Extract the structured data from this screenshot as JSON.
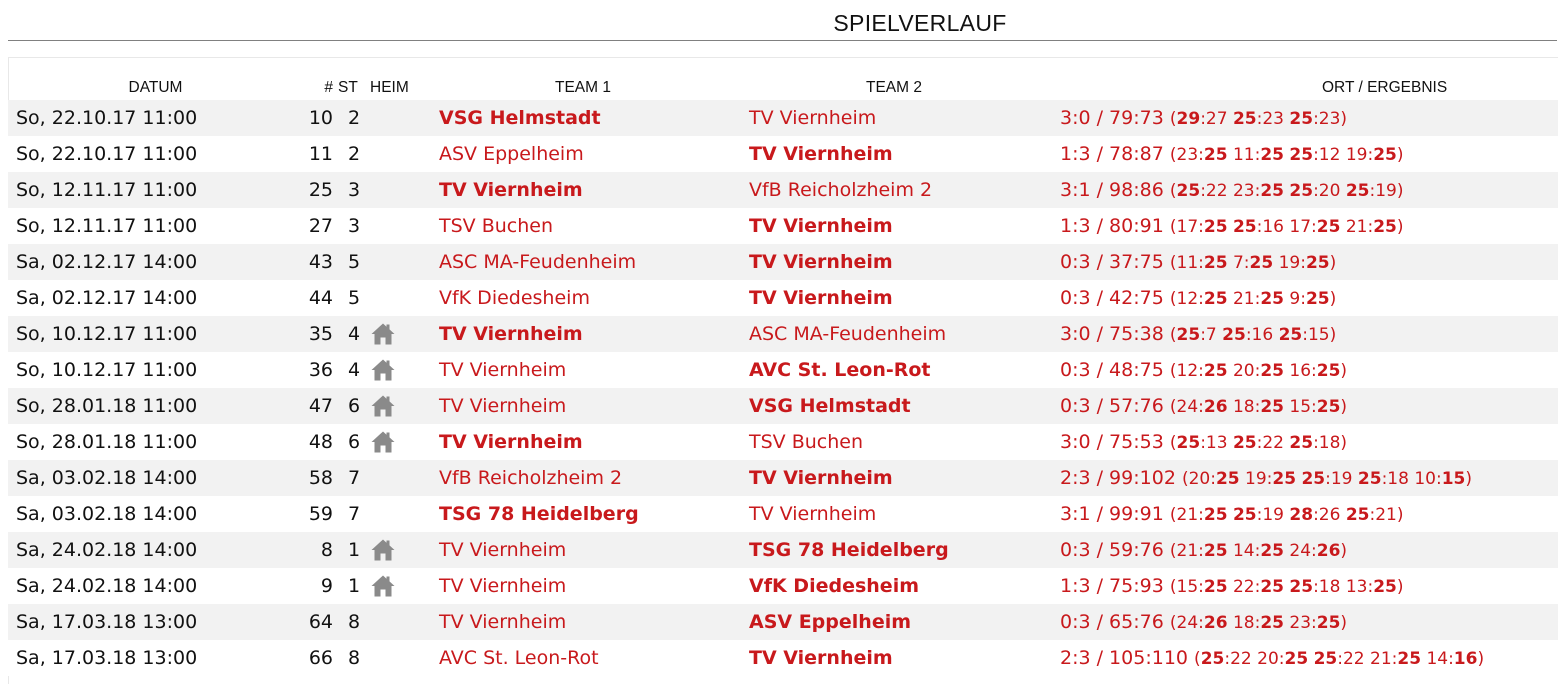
{
  "page": {
    "title": "SPIELVERLAUF"
  },
  "colors": {
    "team_red": "#c8191c",
    "row_stripe": "#f2f2f2",
    "rule": "#808080"
  },
  "headers": {
    "date": "DATUM",
    "nr": "#",
    "st": "ST",
    "heim": "HEIM",
    "team1": "TEAM 1",
    "team2": "TEAM 2",
    "result": "ORT / ERGEBNIS"
  },
  "home_icon": "house-icon",
  "matches": [
    {
      "date": "So, 22.10.17 11:00",
      "nr": "10",
      "st": "2",
      "home": false,
      "team1": "VSG Helmstadt",
      "team2": "TV Viernheim",
      "winner": 1,
      "result": "3:0 / 79:73",
      "sets": [
        [
          "29",
          "27"
        ],
        [
          "25",
          "23"
        ],
        [
          "25",
          "23"
        ]
      ]
    },
    {
      "date": "So, 22.10.17 11:00",
      "nr": "11",
      "st": "2",
      "home": false,
      "team1": "ASV Eppelheim",
      "team2": "TV Viernheim",
      "winner": 2,
      "result": "1:3 / 78:87",
      "sets": [
        [
          "23",
          "25"
        ],
        [
          "11",
          "25"
        ],
        [
          "25",
          "12"
        ],
        [
          "19",
          "25"
        ]
      ]
    },
    {
      "date": "So, 12.11.17 11:00",
      "nr": "25",
      "st": "3",
      "home": false,
      "team1": "TV Viernheim",
      "team2": "VfB Reicholzheim 2",
      "winner": 1,
      "result": "3:1 / 98:86",
      "sets": [
        [
          "25",
          "22"
        ],
        [
          "23",
          "25"
        ],
        [
          "25",
          "20"
        ],
        [
          "25",
          "19"
        ]
      ]
    },
    {
      "date": "So, 12.11.17 11:00",
      "nr": "27",
      "st": "3",
      "home": false,
      "team1": "TSV Buchen",
      "team2": "TV Viernheim",
      "winner": 2,
      "result": "1:3 / 80:91",
      "sets": [
        [
          "17",
          "25"
        ],
        [
          "25",
          "16"
        ],
        [
          "17",
          "25"
        ],
        [
          "21",
          "25"
        ]
      ]
    },
    {
      "date": "Sa, 02.12.17 14:00",
      "nr": "43",
      "st": "5",
      "home": false,
      "team1": "ASC MA-Feudenheim",
      "team2": "TV Viernheim",
      "winner": 2,
      "result": "0:3 / 37:75",
      "sets": [
        [
          "11",
          "25"
        ],
        [
          "7",
          "25"
        ],
        [
          "19",
          "25"
        ]
      ]
    },
    {
      "date": "Sa, 02.12.17 14:00",
      "nr": "44",
      "st": "5",
      "home": false,
      "team1": "VfK Diedesheim",
      "team2": "TV Viernheim",
      "winner": 2,
      "result": "0:3 / 42:75",
      "sets": [
        [
          "12",
          "25"
        ],
        [
          "21",
          "25"
        ],
        [
          "9",
          "25"
        ]
      ]
    },
    {
      "date": "So, 10.12.17 11:00",
      "nr": "35",
      "st": "4",
      "home": true,
      "team1": "TV Viernheim",
      "team2": "ASC MA-Feudenheim",
      "winner": 1,
      "result": "3:0 / 75:38",
      "sets": [
        [
          "25",
          "7"
        ],
        [
          "25",
          "16"
        ],
        [
          "25",
          "15"
        ]
      ]
    },
    {
      "date": "So, 10.12.17 11:00",
      "nr": "36",
      "st": "4",
      "home": true,
      "team1": "TV Viernheim",
      "team2": "AVC St. Leon-Rot",
      "winner": 2,
      "result": "0:3 / 48:75",
      "sets": [
        [
          "12",
          "25"
        ],
        [
          "20",
          "25"
        ],
        [
          "16",
          "25"
        ]
      ]
    },
    {
      "date": "So, 28.01.18 11:00",
      "nr": "47",
      "st": "6",
      "home": true,
      "team1": "TV Viernheim",
      "team2": "VSG Helmstadt",
      "winner": 2,
      "result": "0:3 / 57:76",
      "sets": [
        [
          "24",
          "26"
        ],
        [
          "18",
          "25"
        ],
        [
          "15",
          "25"
        ]
      ]
    },
    {
      "date": "So, 28.01.18 11:00",
      "nr": "48",
      "st": "6",
      "home": true,
      "team1": "TV Viernheim",
      "team2": "TSV Buchen",
      "winner": 1,
      "result": "3:0 / 75:53",
      "sets": [
        [
          "25",
          "13"
        ],
        [
          "25",
          "22"
        ],
        [
          "25",
          "18"
        ]
      ]
    },
    {
      "date": "Sa, 03.02.18 14:00",
      "nr": "58",
      "st": "7",
      "home": false,
      "team1": "VfB Reicholzheim 2",
      "team2": "TV Viernheim",
      "winner": 2,
      "result": "2:3 / 99:102",
      "sets": [
        [
          "20",
          "25"
        ],
        [
          "19",
          "25"
        ],
        [
          "25",
          "19"
        ],
        [
          "25",
          "18"
        ],
        [
          "10",
          "15"
        ]
      ]
    },
    {
      "date": "Sa, 03.02.18 14:00",
      "nr": "59",
      "st": "7",
      "home": false,
      "team1": "TSG 78 Heidelberg",
      "team2": "TV Viernheim",
      "winner": 1,
      "result": "3:1 / 99:91",
      "sets": [
        [
          "21",
          "25"
        ],
        [
          "25",
          "19"
        ],
        [
          "28",
          "26"
        ],
        [
          "25",
          "21"
        ]
      ]
    },
    {
      "date": "Sa, 24.02.18 14:00",
      "nr": "8",
      "st": "1",
      "home": true,
      "team1": "TV Viernheim",
      "team2": "TSG 78 Heidelberg",
      "winner": 2,
      "result": "0:3 / 59:76",
      "sets": [
        [
          "21",
          "25"
        ],
        [
          "14",
          "25"
        ],
        [
          "24",
          "26"
        ]
      ]
    },
    {
      "date": "Sa, 24.02.18 14:00",
      "nr": "9",
      "st": "1",
      "home": true,
      "team1": "TV Viernheim",
      "team2": "VfK Diedesheim",
      "winner": 2,
      "result": "1:3 / 75:93",
      "sets": [
        [
          "15",
          "25"
        ],
        [
          "22",
          "25"
        ],
        [
          "25",
          "18"
        ],
        [
          "13",
          "25"
        ]
      ]
    },
    {
      "date": "Sa, 17.03.18 13:00",
      "nr": "64",
      "st": "8",
      "home": false,
      "team1": "TV Viernheim",
      "team2": "ASV Eppelheim",
      "winner": 2,
      "result": "0:3 / 65:76",
      "sets": [
        [
          "24",
          "26"
        ],
        [
          "18",
          "25"
        ],
        [
          "23",
          "25"
        ]
      ]
    },
    {
      "date": "Sa, 17.03.18 13:00",
      "nr": "66",
      "st": "8",
      "home": false,
      "team1": "AVC St. Leon-Rot",
      "team2": "TV Viernheim",
      "winner": 2,
      "result": "2:3 / 105:110",
      "sets": [
        [
          "25",
          "22"
        ],
        [
          "20",
          "25"
        ],
        [
          "25",
          "22"
        ],
        [
          "21",
          "25"
        ],
        [
          "14",
          "16"
        ]
      ]
    }
  ]
}
